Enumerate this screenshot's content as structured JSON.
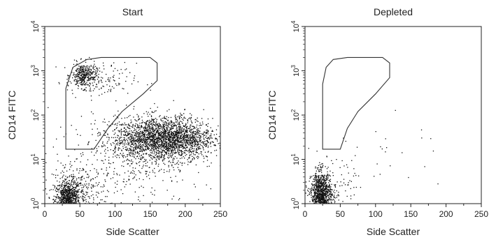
{
  "chart_data": [
    {
      "type": "scatter",
      "title": "Start",
      "xlabel": "Side Scatter",
      "ylabel": "CD14 FITC",
      "xlim": [
        0,
        250
      ],
      "ylim_log10": [
        0,
        4
      ],
      "y_scale": "log",
      "xticks": [
        "0",
        "50",
        "100",
        "150",
        "200",
        "250"
      ],
      "yticks": [
        {
          "base": "10",
          "exp": "0"
        },
        {
          "base": "10",
          "exp": "1"
        },
        {
          "base": "10",
          "exp": "2"
        },
        {
          "base": "10",
          "exp": "3"
        },
        {
          "base": "10",
          "exp": "4"
        }
      ],
      "gate": [
        [
          30,
          17
        ],
        [
          30,
          400
        ],
        [
          40,
          1200
        ],
        [
          60,
          1800
        ],
        [
          80,
          2000
        ],
        [
          150,
          2000
        ],
        [
          160,
          1500
        ],
        [
          160,
          600
        ],
        [
          140,
          300
        ],
        [
          110,
          120
        ],
        [
          90,
          50
        ],
        [
          70,
          17
        ]
      ],
      "populations": [
        {
          "name": "",
          "cx": 32,
          "cy": 1.2,
          "sx": 9,
          "sy_log10": 0.23,
          "n": 900
        },
        {
          "name": "",
          "cx": 50,
          "cy": 2.0,
          "sx": 20,
          "sy_log10": 0.3,
          "n": 250
        },
        {
          "name": "",
          "cx": 55,
          "cy": 800,
          "sx": 9,
          "sy_log10": 0.14,
          "n": 350
        },
        {
          "name": "",
          "cx": 80,
          "cy": 600,
          "sx": 25,
          "sy_log10": 0.2,
          "n": 120
        },
        {
          "name": "",
          "cx": 170,
          "cy": 30,
          "sx": 35,
          "sy_log10": 0.24,
          "n": 2400
        },
        {
          "name": "",
          "cx": 120,
          "cy": 10,
          "sx": 55,
          "sy_log10": 0.55,
          "n": 450
        }
      ]
    },
    {
      "type": "scatter",
      "title": "Depleted",
      "xlabel": "Side Scatter",
      "ylabel": "CD14 FITC",
      "xlim": [
        0,
        250
      ],
      "ylim_log10": [
        0,
        4
      ],
      "y_scale": "log",
      "xticks": [
        "0",
        "50",
        "100",
        "150",
        "200",
        "250"
      ],
      "yticks": [
        {
          "base": "10",
          "exp": "0"
        },
        {
          "base": "10",
          "exp": "1"
        },
        {
          "base": "10",
          "exp": "2"
        },
        {
          "base": "10",
          "exp": "3"
        },
        {
          "base": "10",
          "exp": "4"
        }
      ],
      "gate": [
        [
          25,
          17
        ],
        [
          25,
          500
        ],
        [
          30,
          1200
        ],
        [
          40,
          1800
        ],
        [
          60,
          2000
        ],
        [
          110,
          2000
        ],
        [
          120,
          1500
        ],
        [
          120,
          700
        ],
        [
          100,
          300
        ],
        [
          75,
          120
        ],
        [
          60,
          50
        ],
        [
          50,
          17
        ]
      ],
      "populations": [
        {
          "name": "",
          "cx": 22,
          "cy": 1.5,
          "sx": 7,
          "sy_log10": 0.27,
          "n": 1100
        },
        {
          "name": "",
          "cx": 40,
          "cy": 2.0,
          "sx": 15,
          "sy_log10": 0.3,
          "n": 150
        },
        {
          "name": "",
          "cx": 110,
          "cy": 15,
          "sx": 40,
          "sy_log10": 0.4,
          "n": 25
        }
      ]
    }
  ]
}
